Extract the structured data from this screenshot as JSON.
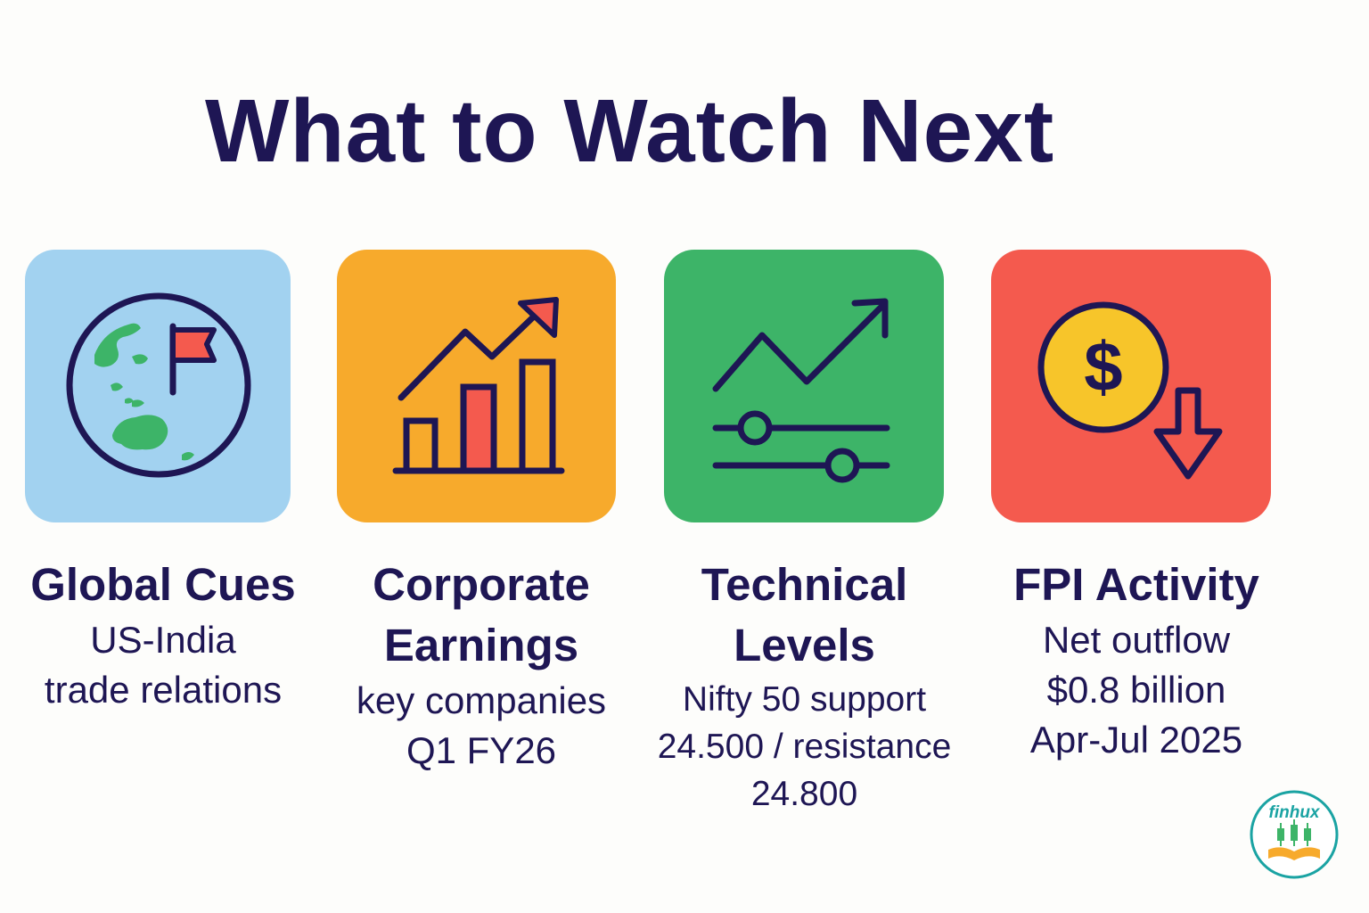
{
  "title": "What to Watch Next",
  "colors": {
    "navy": "#1e1654",
    "tile_blue": "#a2d2f0",
    "tile_orange": "#f7aa2c",
    "tile_green": "#3db468",
    "tile_red": "#f45a4e",
    "teal": "#1aa3a3"
  },
  "cards": [
    {
      "title": "Global Cues",
      "desc": [
        "US-India",
        "trade relations"
      ],
      "icon": "globe-flag-icon"
    },
    {
      "title": [
        "Corporate",
        "Earnings"
      ],
      "desc": [
        "key companies",
        "Q1 FY26"
      ],
      "icon": "bar-chart-growth-icon"
    },
    {
      "title": [
        "Technical",
        "Levels"
      ],
      "desc": [
        "Nifty 50 support",
        "24.500 / resistance",
        "24.800"
      ],
      "icon": "trend-sliders-icon"
    },
    {
      "title": "FPI Activity",
      "desc": [
        "Net outflow",
        "$0.8 billion",
        "Apr-Jul 2025"
      ],
      "icon": "dollar-coin-down-icon"
    }
  ],
  "logo": {
    "text": "finhux",
    "icon": "candlestick-book-icon"
  }
}
